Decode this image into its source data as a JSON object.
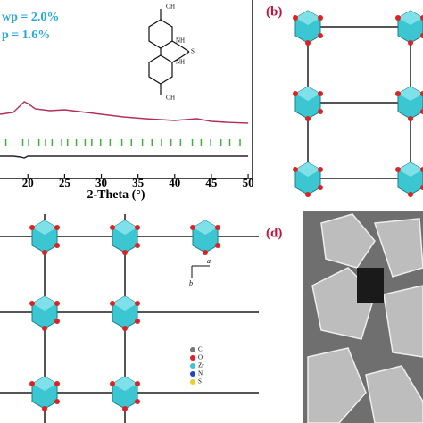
{
  "panel_a": {
    "type": "line",
    "annotations": [
      "wp = 2.0%",
      "p = 1.6%"
    ],
    "x_label": "2-Theta (°)",
    "xlim": [
      16.2,
      50.6
    ],
    "xticks": [
      20,
      25,
      30,
      35,
      40,
      45,
      50
    ],
    "ylim": [
      0,
      100
    ],
    "x": [
      16.2,
      18,
      19,
      19.5,
      20,
      21,
      23,
      25,
      28,
      30,
      33,
      36,
      40,
      43,
      45,
      47,
      50
    ],
    "curves": [
      {
        "color": "#b0305a",
        "values": [
          36,
          37,
          41,
          43,
          42,
          39,
          38,
          38.5,
          37,
          36,
          34.5,
          33.5,
          32.5,
          33.5,
          32,
          31.5,
          31
        ]
      },
      {
        "color": "#222222",
        "values": [
          12.5,
          12.5,
          12,
          11.5,
          12.5,
          12.5,
          12.5,
          12.5,
          12.5,
          12.5,
          12.5,
          12.5,
          12.5,
          12.5,
          12.5,
          12.5,
          12.5
        ]
      }
    ],
    "reflections": {
      "color": "#3fae3a",
      "level": 20,
      "positions": [
        17,
        19.3,
        20.1,
        21.5,
        22.4,
        23.3,
        24.6,
        25.4,
        26.6,
        27.8,
        28.7,
        29.9,
        31.2,
        32.8,
        34.1,
        35.6,
        36.9,
        38.2,
        39.5,
        40.8,
        42.4,
        43.6,
        44.9,
        46.3,
        47.5,
        48.9
      ]
    },
    "molecule_labels": [
      "OH",
      "NH",
      "S",
      "NH",
      "OH"
    ]
  },
  "panel_b": {
    "label": "(b)"
  },
  "panel_c": {
    "axes": [
      "a",
      "b"
    ],
    "legend": [
      "C",
      "O",
      "Zr",
      "N",
      "S"
    ]
  },
  "panel_d": {
    "label": "(d)"
  }
}
